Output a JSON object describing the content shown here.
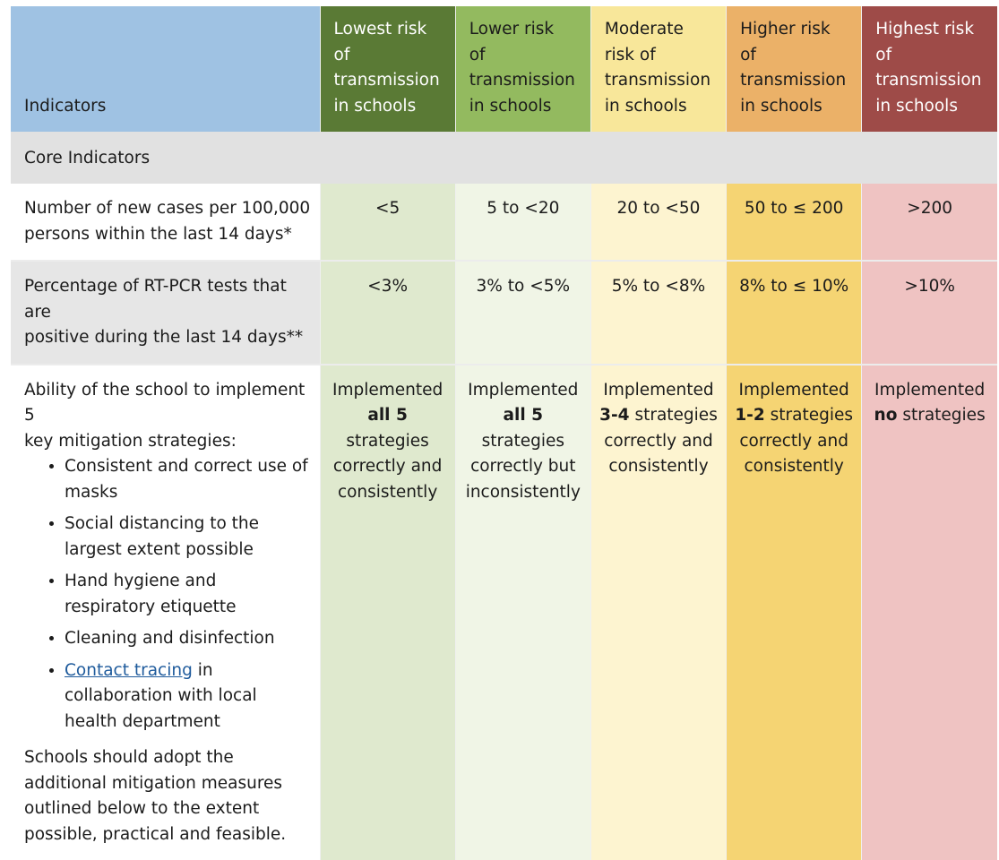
{
  "header": {
    "indicators": "Indicators",
    "levels": [
      {
        "lines": [
          "Lowest risk",
          "of",
          "transmission",
          "in schools"
        ],
        "color": "#5a7a35"
      },
      {
        "lines": [
          "Lower risk",
          "of",
          "transmission",
          "in schools"
        ],
        "color": "#93ba5f"
      },
      {
        "lines": [
          "Moderate",
          "risk of",
          "transmission",
          "in schools"
        ],
        "color": "#f8e79a"
      },
      {
        "lines": [
          "Higher risk",
          "of",
          "transmission",
          "in schools"
        ],
        "color": "#ebb168"
      },
      {
        "lines": [
          "Highest risk",
          "of",
          "transmission",
          "in schools"
        ],
        "color": "#9e4b48"
      }
    ]
  },
  "section": "Core Indicators",
  "rows": [
    {
      "label_lines": [
        "Number of new cases per 100,000",
        "persons within the last 14 days*"
      ],
      "values": [
        "<5",
        "5 to <20",
        "20 to <50",
        "50 to ≤ 200",
        ">200"
      ]
    },
    {
      "label_lines": [
        "Percentage of RT-PCR tests that are",
        "positive during the last 14 days**"
      ],
      "values": [
        "<3%",
        "3% to <5%",
        "5% to <8%",
        "8% to ≤ 10%",
        ">10%"
      ]
    }
  ],
  "mitigation": {
    "intro_lines": [
      "Ability of the school to implement 5",
      "key mitigation strategies:"
    ],
    "bullets": [
      "Consistent and correct use of masks",
      "Social distancing to the largest extent possible",
      "Hand hygiene and respiratory etiquette",
      "Cleaning and disinfection"
    ],
    "contact_link": "Contact tracing",
    "contact_rest": "in collaboration with local health department",
    "note": "Schools should adopt the additional mitigation measures outlined below to the extent possible, practical and feasible.",
    "cells": [
      {
        "pre": "Implemented",
        "bold": "all 5",
        "post": "strategies correctly and consistently"
      },
      {
        "pre": "Implemented",
        "bold": "all 5",
        "post": "strategies correctly but inconsistently"
      },
      {
        "pre": "Implemented",
        "bold": "3-4",
        "post": "strategies correctly and consistently"
      },
      {
        "pre": "Implemented",
        "bold": "1-2",
        "post": "strategies correctly and consistently"
      },
      {
        "pre": "Implemented",
        "bold": "no",
        "post": "strategies"
      }
    ]
  }
}
